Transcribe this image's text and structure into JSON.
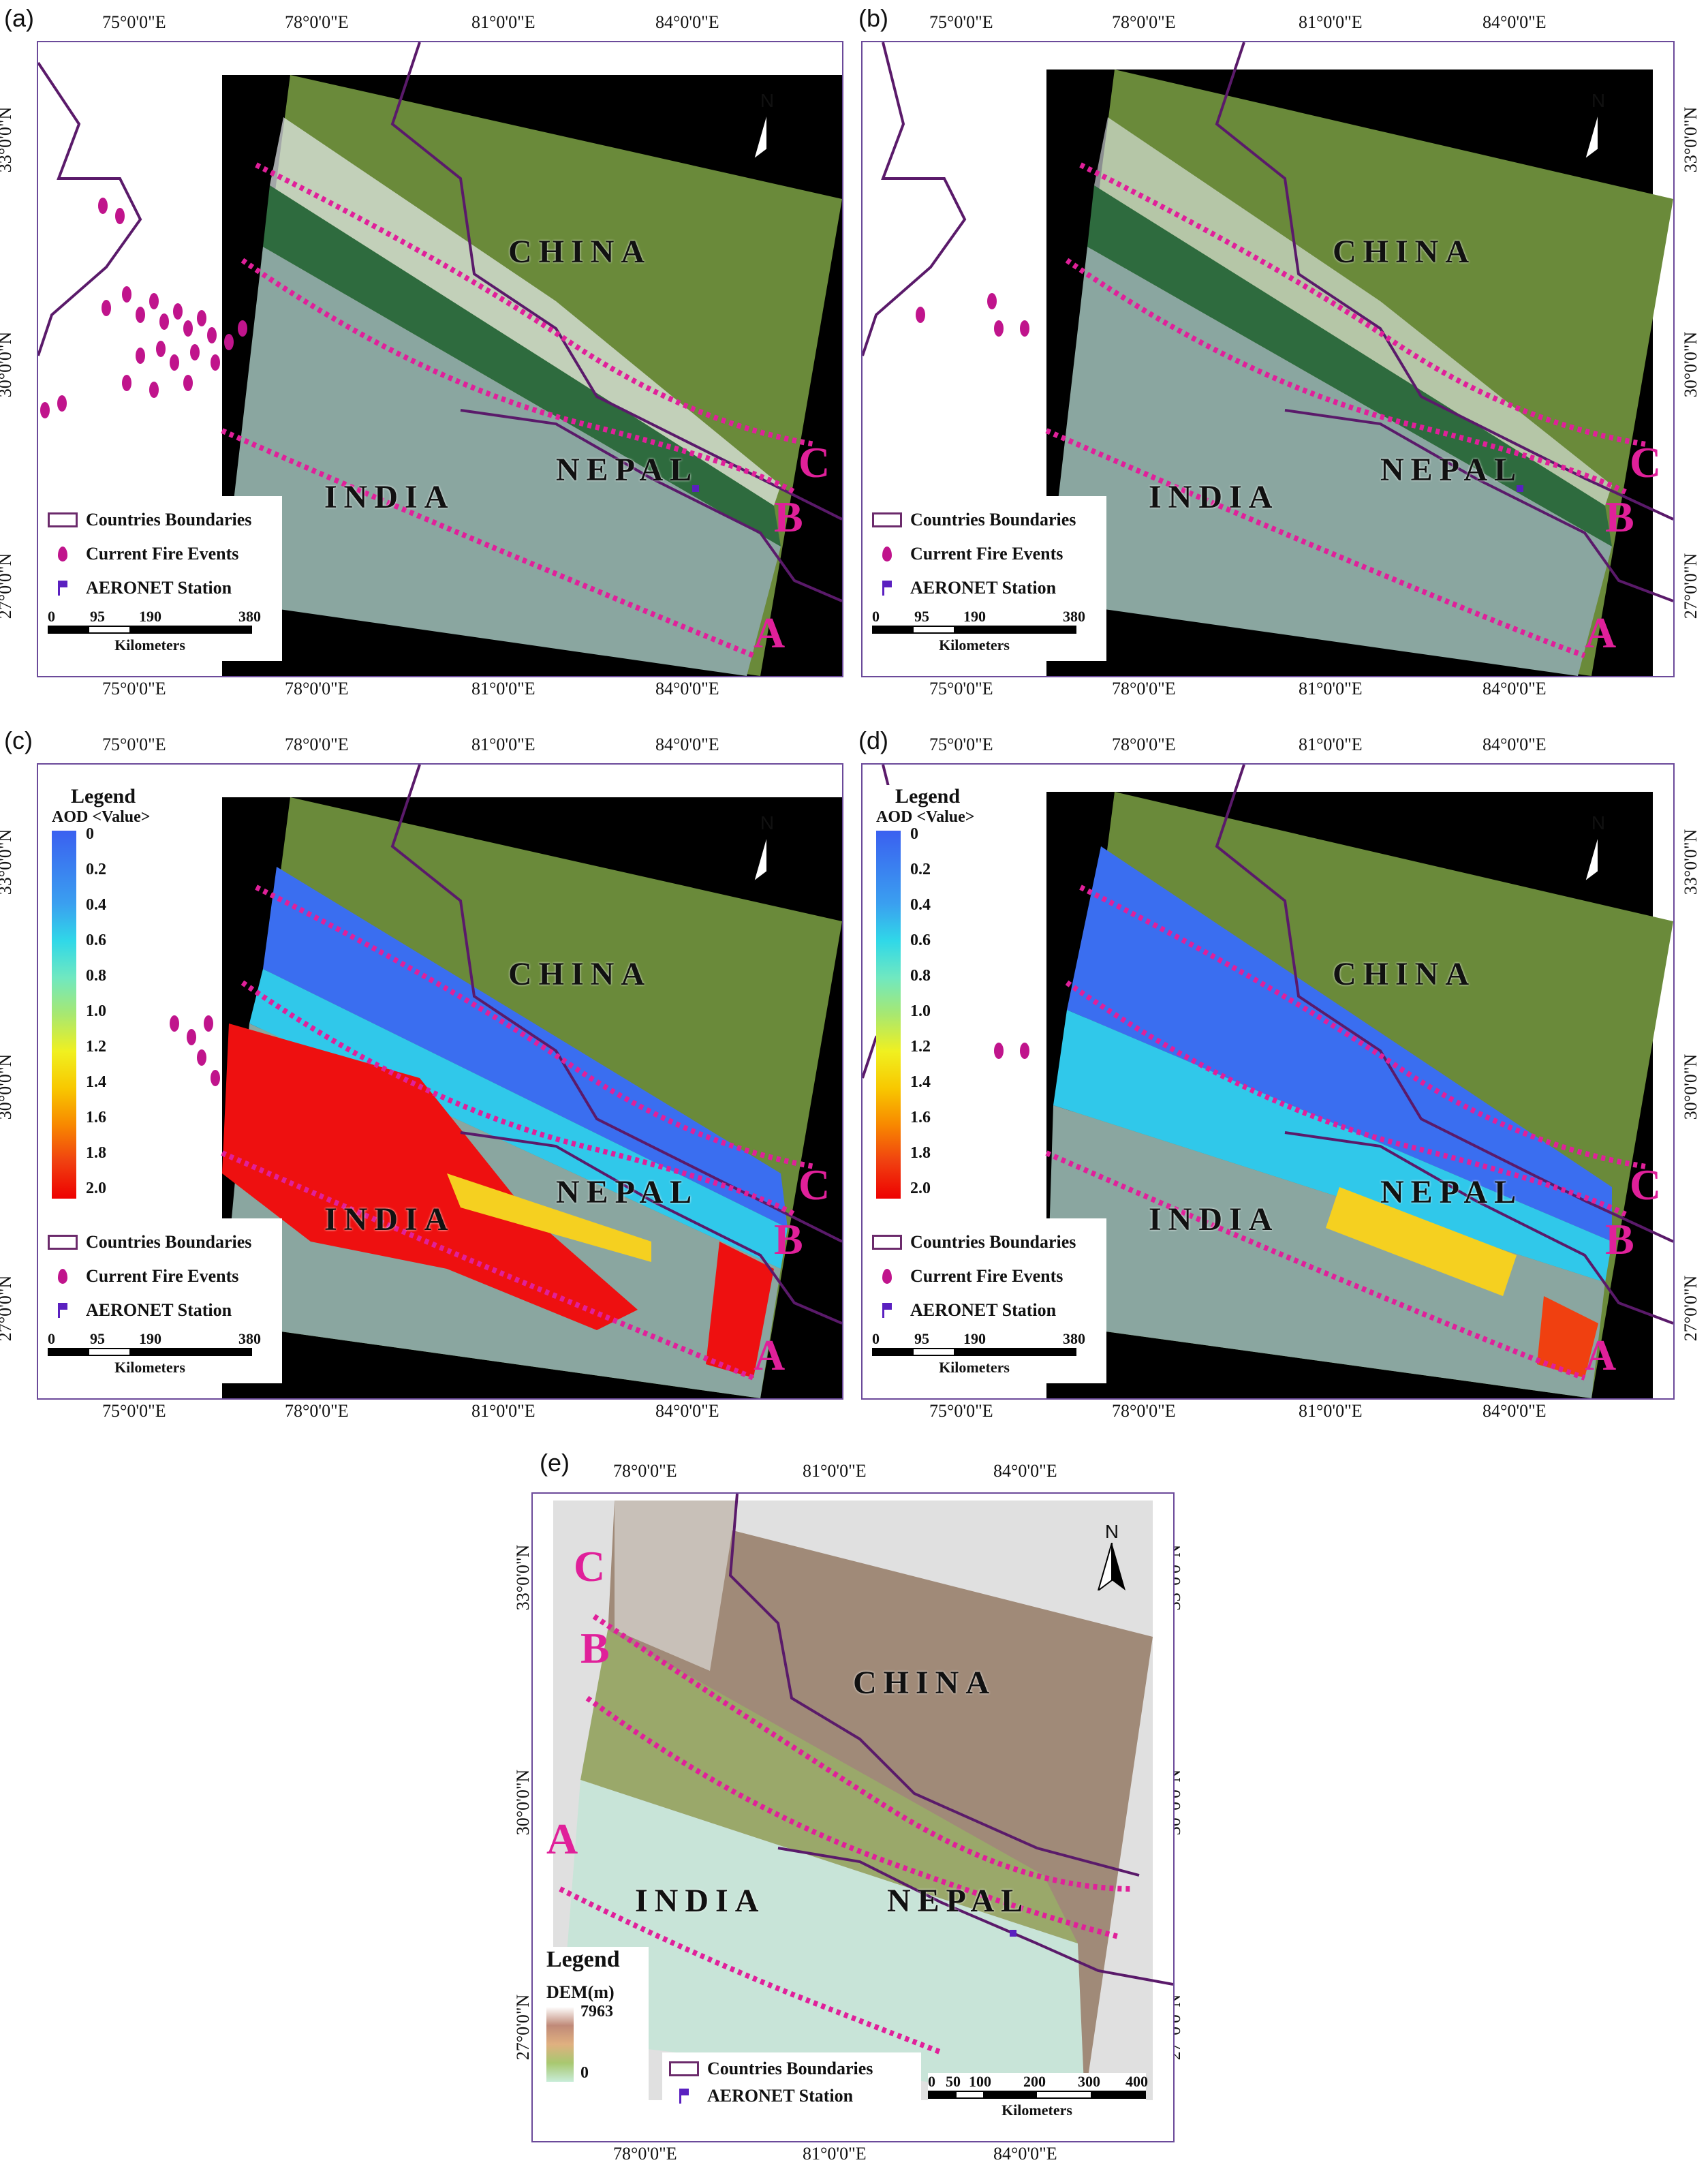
{
  "panels": {
    "a": {
      "label": "(a)"
    },
    "b": {
      "label": "(b)"
    },
    "c": {
      "label": "(c)"
    },
    "d": {
      "label": "(d)"
    },
    "e": {
      "label": "(e)"
    }
  },
  "axes": {
    "lon_ticks": [
      "75°0'0\"E",
      "78°0'0\"E",
      "81°0'0\"E",
      "84°0'0\"E"
    ],
    "lat_ticks": [
      "33°0'0\"N",
      "30°0'0\"N",
      "27°0'0\"N"
    ],
    "e_lon_ticks": [
      "78°0'0\"E",
      "81°0'0\"E",
      "84°0'0\"E"
    ]
  },
  "regions": {
    "china": "CHINA",
    "nepal": "NEPAL",
    "india": "INDIA"
  },
  "lines": {
    "a": "A",
    "b": "B",
    "c": "C"
  },
  "north_label": "N",
  "legend": {
    "boundaries": "Countries Boundaries",
    "fire": "Current Fire Events",
    "aeronet": "AERONET Station"
  },
  "scalebar_small": {
    "ticks": [
      "0",
      "95",
      "190",
      "380"
    ],
    "unit": "Kilometers"
  },
  "scalebar_e": {
    "ticks": [
      "0",
      "50",
      "100",
      "200",
      "300",
      "400"
    ],
    "unit": "Kilometers"
  },
  "aod_legend": {
    "title": "Legend",
    "subtitle": "AOD <Value>",
    "values": [
      "0",
      "0.2",
      "0.4",
      "0.6",
      "0.8",
      "1.0",
      "1.2",
      "1.4",
      "1.6",
      "1.8",
      "2.0"
    ]
  },
  "dem_legend": {
    "title": "Legend",
    "subtitle": "DEM(m)",
    "max": "7963",
    "min": "0"
  },
  "colors": {
    "frame": "#6b4a9a",
    "line": "#e0209a",
    "fire": "#c0148c",
    "aeronet": "#5a20c0",
    "boundary": "#5a1a6a"
  }
}
